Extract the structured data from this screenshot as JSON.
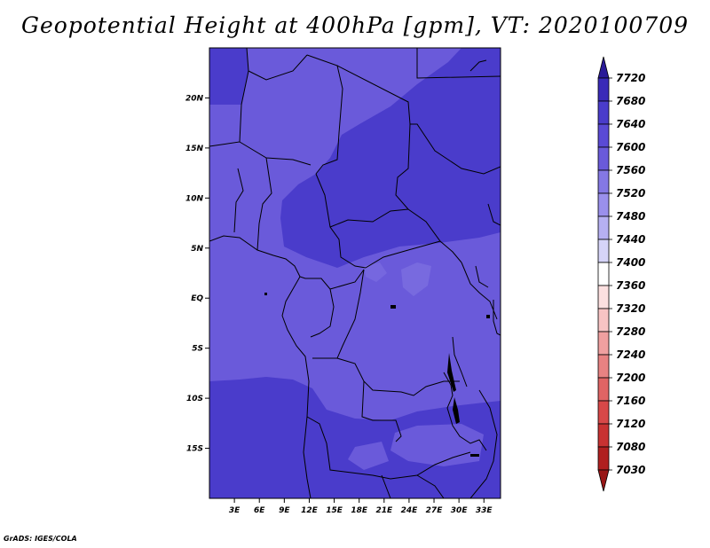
{
  "title": "Geopotential Height at 400hPa [gpm], VT: 2020100709",
  "credit": "GrADS: IGES/COLA",
  "map": {
    "lon_range": [
      0,
      35
    ],
    "lat_range": [
      -20,
      25
    ],
    "lat_ticks": [
      {
        "value": 20,
        "label": "20N"
      },
      {
        "value": 15,
        "label": "15N"
      },
      {
        "value": 10,
        "label": "10N"
      },
      {
        "value": 5,
        "label": "5N"
      },
      {
        "value": 0,
        "label": "EQ"
      },
      {
        "value": -5,
        "label": "5S"
      },
      {
        "value": -10,
        "label": "10S"
      },
      {
        "value": -15,
        "label": "15S"
      }
    ],
    "lon_ticks": [
      {
        "value": 3,
        "label": "3E"
      },
      {
        "value": 6,
        "label": "6E"
      },
      {
        "value": 9,
        "label": "9E"
      },
      {
        "value": 12,
        "label": "12E"
      },
      {
        "value": 15,
        "label": "15E"
      },
      {
        "value": 18,
        "label": "18E"
      },
      {
        "value": 21,
        "label": "21E"
      },
      {
        "value": 24,
        "label": "24E"
      },
      {
        "value": 27,
        "label": "27E"
      },
      {
        "value": 30,
        "label": "30E"
      },
      {
        "value": 33,
        "label": "33E"
      }
    ],
    "colors": {
      "band_7600": "#4a3ccb",
      "band_7560": "#6a5ada",
      "band_7520": "#8478e4",
      "border": "#000000"
    }
  },
  "colorbar": {
    "levels": [
      "7720",
      "7680",
      "7640",
      "7600",
      "7560",
      "7520",
      "7480",
      "7440",
      "7400",
      "7360",
      "7320",
      "7280",
      "7240",
      "7200",
      "7160",
      "7120",
      "7080",
      "7030"
    ],
    "colors": [
      "#2a1a98",
      "#3a2ab8",
      "#4a3ccb",
      "#5a4ad5",
      "#6a5ada",
      "#8478e4",
      "#9a90ec",
      "#b6b0f2",
      "#d6d4f8",
      "#ffffff",
      "#fce0e0",
      "#f8c4c4",
      "#f0a0a0",
      "#e88282",
      "#e06464",
      "#d84848",
      "#c83232",
      "#b02020",
      "#981616"
    ]
  }
}
